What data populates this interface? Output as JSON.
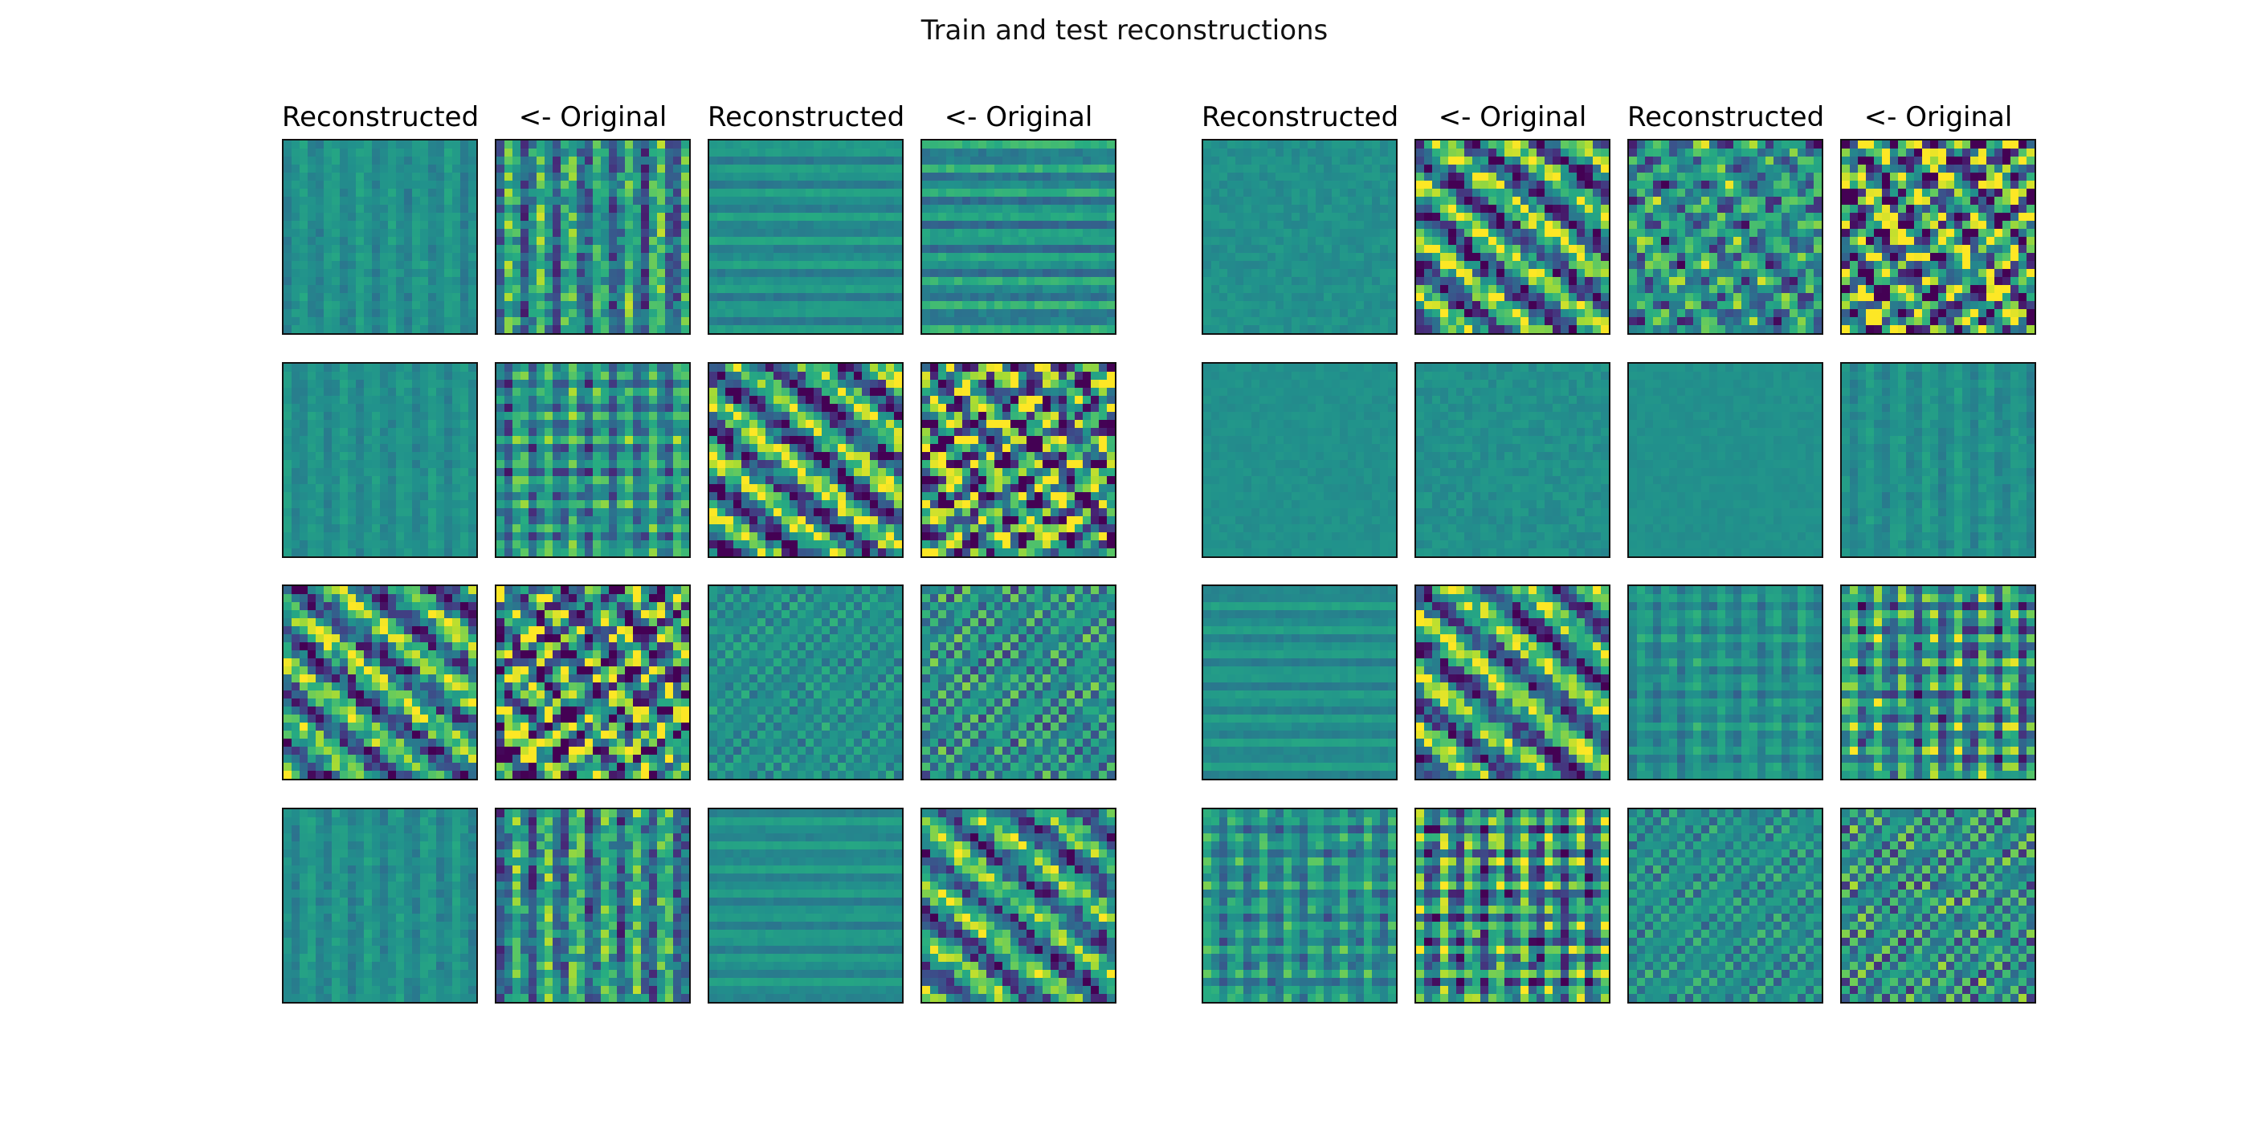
{
  "chart_data": {
    "type": "heatmap",
    "title": "Train and test reconstructions",
    "column_titles": [
      "Reconstructed",
      "<- Original",
      "Reconstructed",
      "<- Original",
      "Reconstructed",
      "<- Original",
      "Reconstructed",
      "<- Original"
    ],
    "colormap": "viridis",
    "colors": [
      "#440154",
      "#3b528b",
      "#21918c",
      "#5ec962",
      "#fde725"
    ],
    "image_resolution": 24,
    "rows": 4,
    "columns": 8,
    "panels": [
      [
        {
          "pattern": "vertical",
          "amp": 0.12,
          "seed": 11
        },
        {
          "pattern": "vertical",
          "amp": 0.45,
          "seed": 12
        },
        {
          "pattern": "horizontal",
          "amp": 0.12,
          "seed": 13
        },
        {
          "pattern": "horizontal",
          "amp": 0.2,
          "seed": 14
        },
        {
          "pattern": "flat",
          "amp": 0.1,
          "seed": 15
        },
        {
          "pattern": "diagonal",
          "amp": 0.85,
          "seed": 16
        },
        {
          "pattern": "blob",
          "amp": 0.5,
          "seed": 17
        },
        {
          "pattern": "blob",
          "amp": 1.0,
          "seed": 18
        }
      ],
      [
        {
          "pattern": "vertical",
          "amp": 0.1,
          "seed": 21
        },
        {
          "pattern": "grid",
          "amp": 0.35,
          "seed": 22
        },
        {
          "pattern": "diagonal",
          "amp": 0.85,
          "seed": 23
        },
        {
          "pattern": "blob",
          "amp": 1.0,
          "seed": 24
        },
        {
          "pattern": "flat",
          "amp": 0.06,
          "seed": 25
        },
        {
          "pattern": "flat",
          "amp": 0.1,
          "seed": 26
        },
        {
          "pattern": "flat",
          "amp": 0.05,
          "seed": 27
        },
        {
          "pattern": "vertical",
          "amp": 0.1,
          "seed": 28
        }
      ],
      [
        {
          "pattern": "diagonal",
          "amp": 0.75,
          "seed": 31
        },
        {
          "pattern": "blob",
          "amp": 1.0,
          "seed": 32
        },
        {
          "pattern": "checker",
          "amp": 0.15,
          "seed": 33
        },
        {
          "pattern": "checker",
          "amp": 0.3,
          "seed": 34
        },
        {
          "pattern": "horizontal",
          "amp": 0.1,
          "seed": 35
        },
        {
          "pattern": "diagonal",
          "amp": 0.75,
          "seed": 36
        },
        {
          "pattern": "grid",
          "amp": 0.15,
          "seed": 37
        },
        {
          "pattern": "grid",
          "amp": 0.45,
          "seed": 38
        }
      ],
      [
        {
          "pattern": "vertical",
          "amp": 0.12,
          "seed": 41
        },
        {
          "pattern": "vertical",
          "amp": 0.45,
          "seed": 42
        },
        {
          "pattern": "horizontal",
          "amp": 0.1,
          "seed": 43
        },
        {
          "pattern": "diagonal",
          "amp": 0.7,
          "seed": 44
        },
        {
          "pattern": "grid",
          "amp": 0.25,
          "seed": 45
        },
        {
          "pattern": "grid",
          "amp": 0.55,
          "seed": 46
        },
        {
          "pattern": "checker",
          "amp": 0.2,
          "seed": 47
        },
        {
          "pattern": "checker",
          "amp": 0.35,
          "seed": 48
        }
      ]
    ]
  }
}
